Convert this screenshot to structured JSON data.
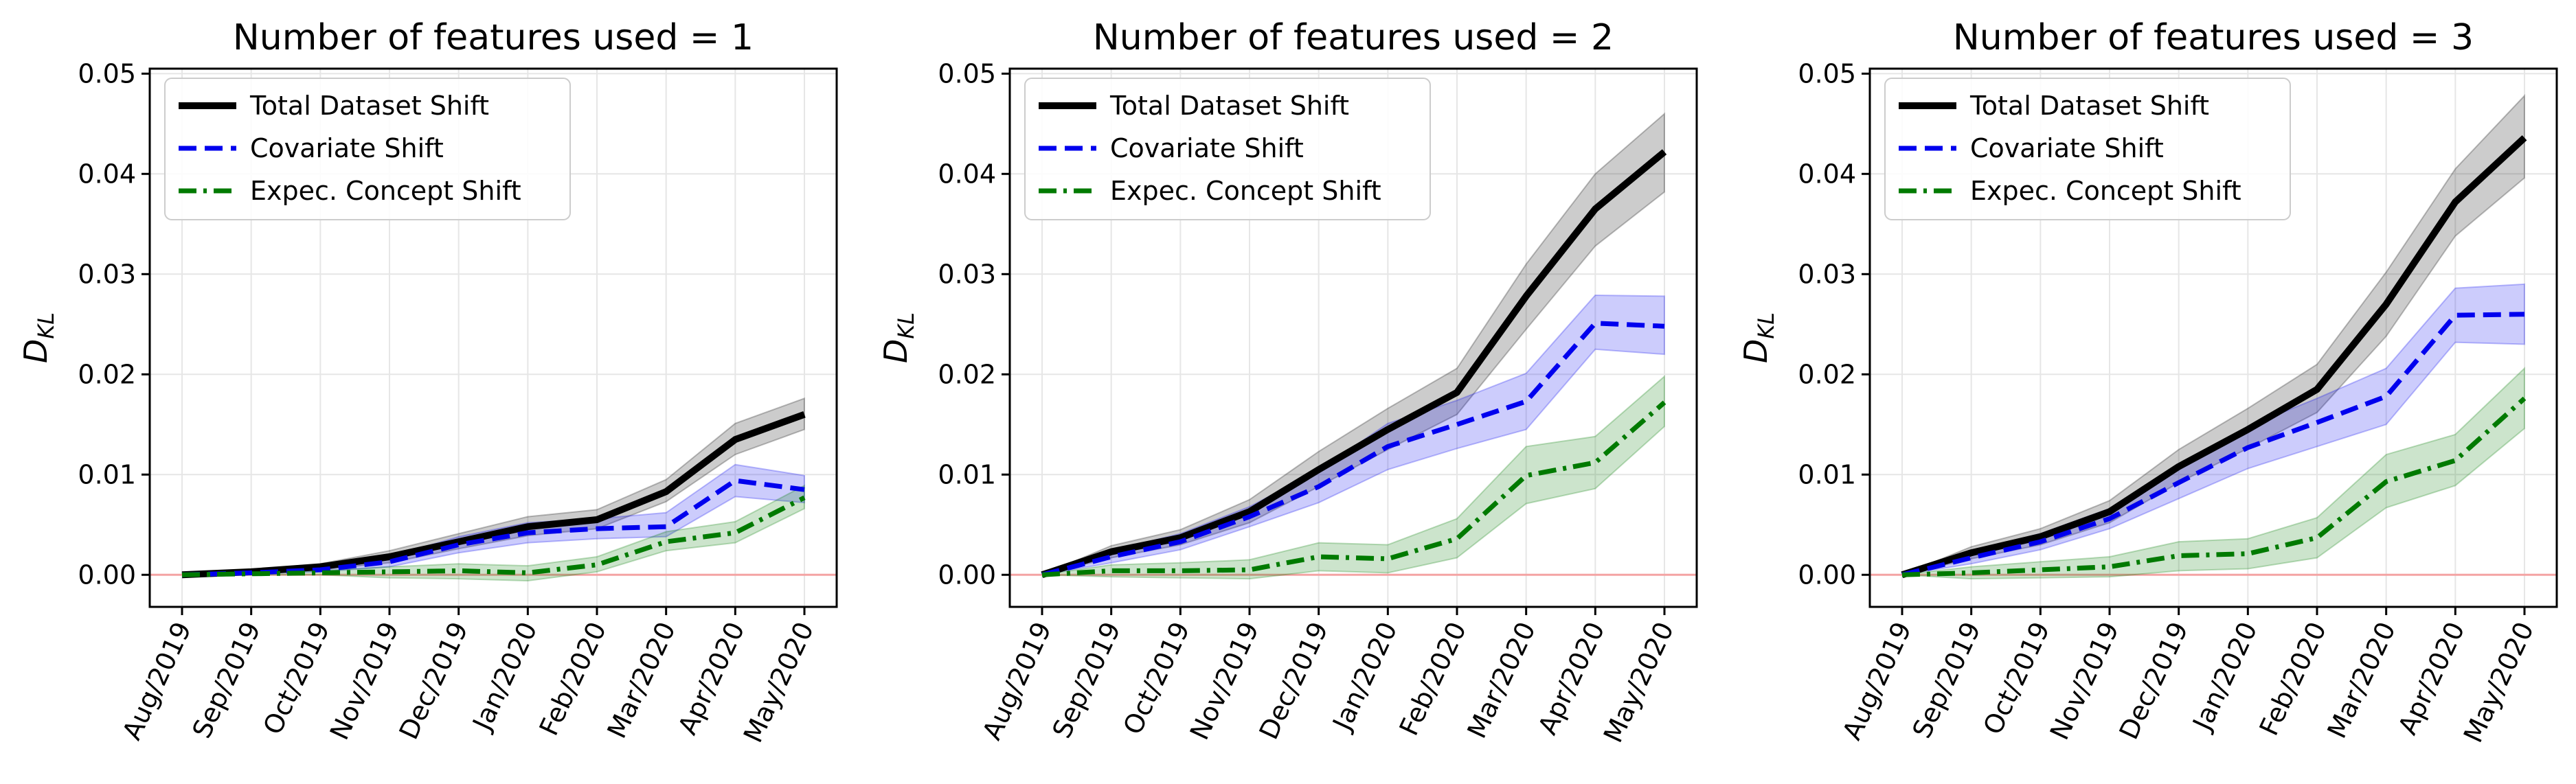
{
  "figure": {
    "background": "#ffffff"
  },
  "chart_data": [
    {
      "type": "line",
      "title": "Number of features used = 1",
      "xlabel": "",
      "ylabel": "D_KL",
      "categories": [
        "Aug/2019",
        "Sep/2019",
        "Oct/2019",
        "Nov/2019",
        "Dec/2019",
        "Jan/2020",
        "Feb/2020",
        "Mar/2020",
        "Apr/2020",
        "May/2020"
      ],
      "ylim": [
        -0.0032,
        0.0505
      ],
      "yticks": [
        "0.00",
        "0.01",
        "0.02",
        "0.03",
        "0.04",
        "0.05"
      ],
      "grid": true,
      "legend_position": "top-left",
      "reference_line": {
        "y": 0.0,
        "color": "#f4a3a3"
      },
      "series": [
        {
          "name": "Total Dataset Shift",
          "color": "#000000",
          "style": "solid",
          "values": [
            0.0,
            0.0003,
            0.0008,
            0.0018,
            0.0033,
            0.0048,
            0.0055,
            0.0083,
            0.0135,
            0.016
          ],
          "lower": [
            0.0,
            0.0002,
            0.0005,
            0.0012,
            0.0026,
            0.0039,
            0.0046,
            0.0073,
            0.012,
            0.0145
          ],
          "upper": [
            0.0,
            0.0005,
            0.0011,
            0.0024,
            0.0041,
            0.0058,
            0.0065,
            0.0095,
            0.0151,
            0.0176
          ]
        },
        {
          "name": "Covariate Shift",
          "color": "#0000ee",
          "style": "dashed",
          "values": [
            0.0,
            0.0002,
            0.0005,
            0.0013,
            0.003,
            0.0042,
            0.0046,
            0.0048,
            0.0094,
            0.0085
          ],
          "lower": [
            0.0,
            0.0001,
            0.0003,
            0.0008,
            0.0022,
            0.0032,
            0.0036,
            0.0038,
            0.0078,
            0.0072
          ],
          "upper": [
            0.0,
            0.0004,
            0.0008,
            0.0018,
            0.0038,
            0.0052,
            0.0056,
            0.0062,
            0.011,
            0.0099
          ]
        },
        {
          "name": "Expec. Concept Shift",
          "color": "#007a00",
          "style": "dashdot",
          "values": [
            0.0,
            0.0001,
            0.0002,
            0.0003,
            0.0004,
            0.0002,
            0.001,
            0.0033,
            0.0042,
            0.0077
          ],
          "lower": [
            0.0,
            0.0,
            0.0,
            -0.0003,
            -0.0004,
            -0.0006,
            0.0003,
            0.0024,
            0.0032,
            0.0066
          ],
          "upper": [
            0.0,
            0.0002,
            0.0004,
            0.0008,
            0.0011,
            0.0009,
            0.0018,
            0.0043,
            0.0053,
            0.0089
          ]
        }
      ]
    },
    {
      "type": "line",
      "title": "Number of features used = 2",
      "xlabel": "",
      "ylabel": "D_KL",
      "categories": [
        "Aug/2019",
        "Sep/2019",
        "Oct/2019",
        "Nov/2019",
        "Dec/2019",
        "Jan/2020",
        "Feb/2020",
        "Mar/2020",
        "Apr/2020",
        "May/2020"
      ],
      "ylim": [
        -0.0032,
        0.0505
      ],
      "yticks": [
        "0.00",
        "0.01",
        "0.02",
        "0.03",
        "0.04",
        "0.05"
      ],
      "grid": true,
      "legend_position": "top-left",
      "reference_line": {
        "y": 0.0,
        "color": "#f4a3a3"
      },
      "series": [
        {
          "name": "Total Dataset Shift",
          "color": "#000000",
          "style": "solid",
          "values": [
            0.0,
            0.0023,
            0.0037,
            0.0063,
            0.0105,
            0.0145,
            0.0182,
            0.0278,
            0.0365,
            0.0422
          ],
          "lower": [
            0.0,
            0.0017,
            0.003,
            0.0052,
            0.0088,
            0.0125,
            0.016,
            0.0245,
            0.0328,
            0.0382
          ],
          "upper": [
            0.0,
            0.0029,
            0.0045,
            0.0075,
            0.0123,
            0.0166,
            0.0206,
            0.031,
            0.04,
            0.046
          ]
        },
        {
          "name": "Covariate Shift",
          "color": "#0000ee",
          "style": "dashed",
          "values": [
            0.0,
            0.0018,
            0.0033,
            0.0058,
            0.0088,
            0.0128,
            0.015,
            0.0173,
            0.0251,
            0.0248
          ],
          "lower": [
            0.0,
            0.0012,
            0.0025,
            0.0048,
            0.0072,
            0.0105,
            0.0126,
            0.0145,
            0.0225,
            0.022
          ],
          "upper": [
            0.0,
            0.0024,
            0.0041,
            0.0068,
            0.0104,
            0.0151,
            0.0174,
            0.0201,
            0.0279,
            0.0278
          ]
        },
        {
          "name": "Expec. Concept Shift",
          "color": "#007a00",
          "style": "dashdot",
          "values": [
            0.0,
            0.0004,
            0.0004,
            0.0005,
            0.0018,
            0.0016,
            0.0036,
            0.0099,
            0.0112,
            0.0172
          ],
          "lower": [
            0.0,
            -0.0002,
            -0.0003,
            -0.0004,
            0.0004,
            0.0002,
            0.0017,
            0.0071,
            0.0086,
            0.0148
          ],
          "upper": [
            0.0,
            0.001,
            0.0012,
            0.0015,
            0.0032,
            0.003,
            0.0056,
            0.0128,
            0.0138,
            0.0198
          ]
        }
      ]
    },
    {
      "type": "line",
      "title": "Number of features used = 3",
      "xlabel": "",
      "ylabel": "D_KL",
      "categories": [
        "Aug/2019",
        "Sep/2019",
        "Oct/2019",
        "Nov/2019",
        "Dec/2019",
        "Jan/2020",
        "Feb/2020",
        "Mar/2020",
        "Apr/2020",
        "May/2020"
      ],
      "ylim": [
        -0.0032,
        0.0505
      ],
      "yticks": [
        "0.00",
        "0.01",
        "0.02",
        "0.03",
        "0.04",
        "0.05"
      ],
      "grid": true,
      "legend_position": "top-left",
      "reference_line": {
        "y": 0.0,
        "color": "#f4a3a3"
      },
      "series": [
        {
          "name": "Total Dataset Shift",
          "color": "#000000",
          "style": "solid",
          "values": [
            0.0,
            0.0022,
            0.0038,
            0.0063,
            0.0108,
            0.0145,
            0.0185,
            0.027,
            0.0372,
            0.0436
          ],
          "lower": [
            0.0,
            0.0016,
            0.003,
            0.0052,
            0.0092,
            0.0126,
            0.0162,
            0.0238,
            0.0338,
            0.0396
          ],
          "upper": [
            0.0,
            0.0028,
            0.0046,
            0.0074,
            0.0125,
            0.0166,
            0.021,
            0.0302,
            0.0405,
            0.0478
          ]
        },
        {
          "name": "Covariate Shift",
          "color": "#0000ee",
          "style": "dashed",
          "values": [
            0.0,
            0.0017,
            0.0033,
            0.0056,
            0.0092,
            0.0127,
            0.0152,
            0.0178,
            0.0259,
            0.026
          ],
          "lower": [
            0.0,
            0.0011,
            0.0025,
            0.0046,
            0.0076,
            0.0106,
            0.0128,
            0.015,
            0.0232,
            0.023
          ],
          "upper": [
            0.0,
            0.0023,
            0.0041,
            0.0066,
            0.0108,
            0.0148,
            0.0176,
            0.0206,
            0.0286,
            0.029
          ]
        },
        {
          "name": "Expec. Concept Shift",
          "color": "#007a00",
          "style": "dashdot",
          "values": [
            0.0,
            0.0002,
            0.0005,
            0.0008,
            0.0019,
            0.0021,
            0.0037,
            0.0093,
            0.0114,
            0.0176
          ],
          "lower": [
            0.0,
            -0.0004,
            -0.0003,
            -0.0002,
            0.0004,
            0.0006,
            0.0017,
            0.0067,
            0.0089,
            0.0146
          ],
          "upper": [
            0.0,
            0.0008,
            0.0013,
            0.0018,
            0.0033,
            0.0036,
            0.0057,
            0.012,
            0.014,
            0.0206
          ]
        }
      ]
    }
  ]
}
